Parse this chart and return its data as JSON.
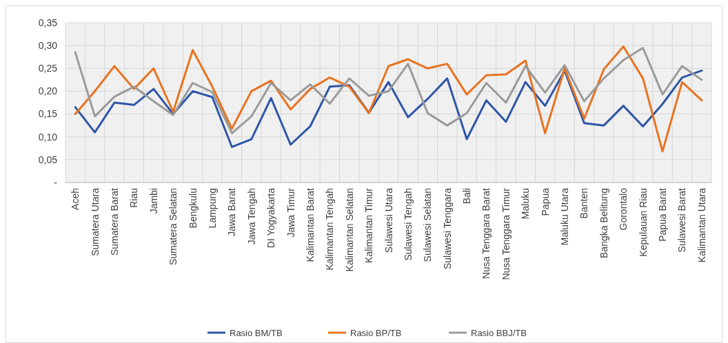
{
  "chart_data": {
    "type": "line",
    "categories": [
      "Aceh",
      "Sumatera Utara",
      "Sumatera Barat",
      "Riau",
      "Jambi",
      "Sumatera Selatan",
      "Bengkulu",
      "Lampung",
      "Jawa Barat",
      "Jawa Tengah",
      "DI Yogyakarta",
      "Jawa Timur",
      "Kalimantan Barat",
      "Kalimantan Tengah",
      "Kalimantan Selatan",
      "Kalimantan Timur",
      "Sulawesi Utara",
      "Sulawesi Tengah",
      "Sulawesi Selatan",
      "Sulawesi Tenggara",
      "Bali",
      "Nusa Tenggara Barat",
      "Nusa Tenggara Timur",
      "Maluku",
      "Papua",
      "Maluku Utara",
      "Banten",
      "Bangka Belitung",
      "Gorontalo",
      "Kepulauan Riau",
      "Papua Barat",
      "Sulawesi Barat",
      "Kalimantan Utara"
    ],
    "series": [
      {
        "name": "Rasio BM/TB",
        "color": "#2e55a8",
        "values": [
          0.165,
          0.11,
          0.175,
          0.17,
          0.205,
          0.15,
          0.2,
          0.187,
          0.078,
          0.095,
          0.185,
          0.083,
          0.123,
          0.21,
          0.213,
          0.153,
          0.22,
          0.143,
          0.183,
          0.228,
          0.095,
          0.18,
          0.133,
          0.22,
          0.168,
          0.245,
          0.13,
          0.125,
          0.168,
          0.123,
          0.172,
          0.23,
          0.245
        ]
      },
      {
        "name": "Rasio BP/TB",
        "color": "#e8731f",
        "values": [
          0.15,
          0.2,
          0.255,
          0.205,
          0.25,
          0.155,
          0.29,
          0.21,
          0.118,
          0.2,
          0.223,
          0.16,
          0.205,
          0.23,
          0.21,
          0.152,
          0.255,
          0.27,
          0.25,
          0.26,
          0.193,
          0.235,
          0.237,
          0.267,
          0.108,
          0.25,
          0.14,
          0.248,
          0.298,
          0.228,
          0.068,
          0.22,
          0.18
        ]
      },
      {
        "name": "Rasio BBJ/TB",
        "color": "#9a9a9a",
        "values": [
          0.285,
          0.145,
          0.188,
          0.21,
          0.178,
          0.148,
          0.218,
          0.198,
          0.108,
          0.145,
          0.218,
          0.18,
          0.215,
          0.173,
          0.228,
          0.19,
          0.2,
          0.26,
          0.152,
          0.125,
          0.152,
          0.218,
          0.175,
          0.255,
          0.197,
          0.257,
          0.178,
          0.228,
          0.268,
          0.295,
          0.193,
          0.255,
          0.225
        ]
      }
    ],
    "ylim": [
      0,
      0.35
    ],
    "yticks": [
      {
        "value": 0,
        "label": "-"
      },
      {
        "value": 0.05,
        "label": "0,05"
      },
      {
        "value": 0.1,
        "label": "0,10"
      },
      {
        "value": 0.15,
        "label": "0,15"
      },
      {
        "value": 0.2,
        "label": "0,20"
      },
      {
        "value": 0.25,
        "label": "0,25"
      },
      {
        "value": 0.3,
        "label": "0,30"
      },
      {
        "value": 0.35,
        "label": "0,35"
      }
    ],
    "grid": true,
    "legend": "bottom",
    "marker": "none",
    "line_style": "solid"
  }
}
